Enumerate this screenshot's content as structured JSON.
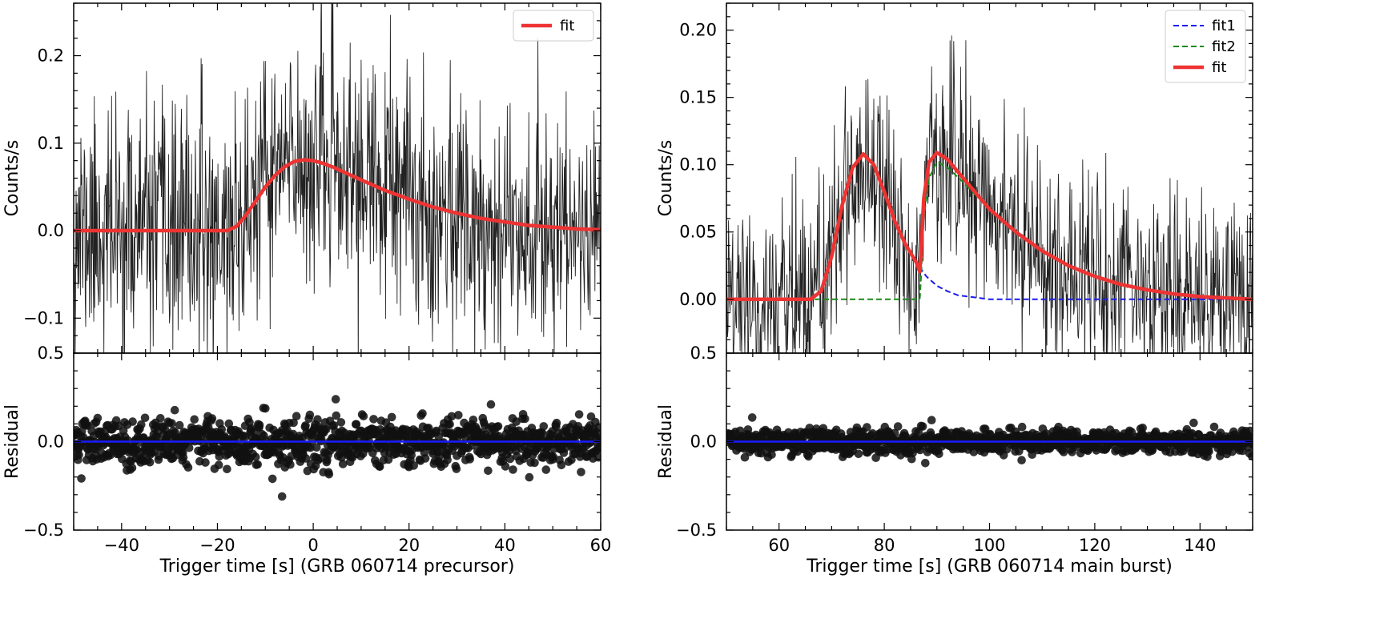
{
  "chart_data": [
    {
      "type": "line",
      "panel": "left",
      "xlabel": "Trigger time [s] (GRB 060714 precursor)",
      "xlim": [
        -50,
        60
      ],
      "xticks": [
        -40,
        -20,
        0,
        20,
        40,
        60
      ],
      "xtick_labels": [
        "−40",
        "−20",
        "0",
        "20",
        "40",
        "60"
      ],
      "top": {
        "ylabel": "Counts/s",
        "ylim": [
          -0.14,
          0.26
        ],
        "yticks": [
          -0.1,
          0.0,
          0.1,
          0.2
        ],
        "ytick_labels": [
          "−0.1",
          "0.0",
          "0.1",
          "0.2"
        ],
        "bottom_edge_label": "0.5",
        "legend": {
          "placement": "top-right",
          "entries": [
            {
              "name": "fit",
              "color": "#ee3333",
              "style": "solid"
            }
          ]
        },
        "series": [
          {
            "name": "data",
            "kind": "noisy-lightcurve",
            "color": "#222222",
            "bin_width": 0.1,
            "noise_sd": 0.068,
            "profile": "same as fit"
          },
          {
            "name": "fit",
            "kind": "pulse",
            "color": "#ee3333",
            "x": [
              -50,
              -18,
              -16,
              -14,
              -12,
              -10,
              -8,
              -6,
              -4,
              -2,
              0,
              2,
              4,
              6,
              8,
              10,
              15,
              20,
              25,
              30,
              35,
              40,
              45,
              50,
              55,
              60
            ],
            "y": [
              0,
              0,
              0.005,
              0.018,
              0.034,
              0.05,
              0.063,
              0.073,
              0.079,
              0.081,
              0.08,
              0.077,
              0.073,
              0.068,
              0.063,
              0.058,
              0.046,
              0.036,
              0.027,
              0.02,
              0.014,
              0.01,
              0.006,
              0.004,
              0.002,
              0.001
            ]
          }
        ]
      },
      "bottom": {
        "ylabel": "Residual",
        "ylim": [
          -0.5,
          0.5
        ],
        "yticks": [
          -0.5,
          0.0,
          0.5
        ],
        "ytick_labels": [
          "−0.5",
          "0.0",
          "0.5"
        ],
        "series": [
          {
            "name": "residuals",
            "kind": "scatter",
            "color": "#111111",
            "noise_sd": 0.066,
            "outliers": [
              {
                "x": -6.5,
                "y": -0.31
              },
              {
                "x": -8.5,
                "y": -0.21
              }
            ]
          },
          {
            "name": "zero",
            "kind": "hline",
            "y": 0,
            "color": "#1a1aff"
          }
        ]
      }
    },
    {
      "type": "line",
      "panel": "right",
      "xlabel": "Trigger time [s] (GRB 060714 main burst)",
      "xlim": [
        50,
        150
      ],
      "xticks": [
        60,
        80,
        100,
        120,
        140
      ],
      "xtick_labels": [
        "60",
        "80",
        "100",
        "120",
        "140"
      ],
      "top": {
        "ylabel": "Counts/s",
        "ylim": [
          -0.04,
          0.22
        ],
        "yticks": [
          0.0,
          0.05,
          0.1,
          0.15,
          0.2
        ],
        "ytick_labels": [
          "0.00",
          "0.05",
          "0.10",
          "0.15",
          "0.20"
        ],
        "bottom_edge_label": "0.5",
        "legend": {
          "placement": "top-right",
          "entries": [
            {
              "name": "fit1",
              "color": "#1a1aee",
              "style": "dashed"
            },
            {
              "name": "fit2",
              "color": "#1a8a1a",
              "style": "dashed"
            },
            {
              "name": "fit",
              "color": "#ee3333",
              "style": "solid"
            }
          ]
        },
        "series": [
          {
            "name": "data",
            "kind": "noisy-lightcurve",
            "color": "#222222",
            "bin_width": 0.1,
            "noise_sd": 0.036,
            "profile": "same as fit"
          },
          {
            "name": "fit1",
            "kind": "pulse",
            "color": "#1a1aee",
            "x": [
              50,
              66,
              68,
              70,
              72,
              74,
              76,
              78,
              80,
              82,
              84,
              86,
              88,
              90,
              92,
              94,
              96,
              100,
              150
            ],
            "y": [
              0,
              0,
              0.006,
              0.032,
              0.07,
              0.098,
              0.108,
              0.1,
              0.08,
              0.058,
              0.041,
              0.028,
              0.017,
              0.01,
              0.006,
              0.003,
              0.002,
              0.0,
              0.0
            ]
          },
          {
            "name": "fit2",
            "kind": "pulse",
            "color": "#1a8a1a",
            "x": [
              50,
              86.8,
              87.5,
              88.5,
              90,
              92,
              95,
              100,
              105,
              110,
              115,
              120,
              125,
              130,
              135,
              140,
              145,
              150
            ],
            "y": [
              0,
              0,
              0.06,
              0.09,
              0.102,
              0.098,
              0.087,
              0.067,
              0.05,
              0.036,
              0.025,
              0.017,
              0.011,
              0.007,
              0.004,
              0.002,
              0.001,
              0.0
            ]
          },
          {
            "name": "fit",
            "kind": "pulse",
            "color": "#ee3333",
            "x": [
              50,
              66,
              68,
              70,
              72,
              74,
              76,
              78,
              80,
              82,
              84,
              86,
              86.8,
              87.5,
              88.5,
              90,
              92,
              95,
              100,
              105,
              110,
              115,
              120,
              125,
              130,
              135,
              140,
              145,
              150
            ],
            "y": [
              0,
              0,
              0.006,
              0.032,
              0.07,
              0.098,
              0.108,
              0.1,
              0.08,
              0.058,
              0.041,
              0.028,
              0.02,
              0.075,
              0.102,
              0.109,
              0.104,
              0.09,
              0.067,
              0.05,
              0.036,
              0.025,
              0.017,
              0.011,
              0.007,
              0.004,
              0.002,
              0.001,
              0.0
            ]
          }
        ]
      },
      "bottom": {
        "ylabel": "Residual",
        "ylim": [
          -0.5,
          0.5
        ],
        "yticks": [
          -0.5,
          0.0,
          0.5
        ],
        "ytick_labels": [
          "−0.5",
          "0.0",
          "0.5"
        ],
        "series": [
          {
            "name": "residuals",
            "kind": "scatter",
            "color": "#111111",
            "noise_sd": 0.035,
            "outliers": []
          },
          {
            "name": "zero",
            "kind": "hline",
            "y": 0,
            "color": "#1a1aff"
          }
        ]
      }
    }
  ]
}
